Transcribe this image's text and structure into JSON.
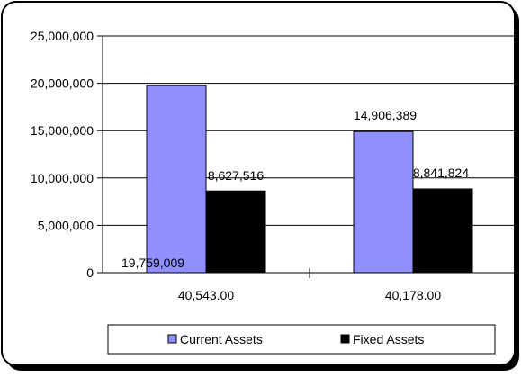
{
  "chart_data": {
    "type": "bar",
    "categories": [
      "40,543.00",
      "40,178.00"
    ],
    "series": [
      {
        "name": "Current Assets",
        "values": [
          19759009,
          14906389
        ],
        "labels": [
          "19,759,009",
          "14,906,389"
        ],
        "color": "#8f8fff"
      },
      {
        "name": "Fixed Assets",
        "values": [
          8627516,
          8841824
        ],
        "labels": [
          "8,627,516",
          "8,841,824"
        ],
        "color": "#000000"
      }
    ],
    "ylim": [
      0,
      25000000
    ],
    "yticks": [
      0,
      5000000,
      10000000,
      15000000,
      20000000,
      25000000
    ],
    "ytick_labels": [
      "0",
      "5,000,000",
      "10,000,000",
      "15,000,000",
      "20,000,000",
      "25,000,000"
    ],
    "grid": true,
    "legend": "bottom"
  }
}
